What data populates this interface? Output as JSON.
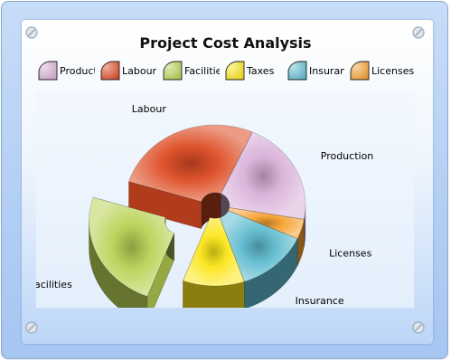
{
  "colors": {
    "Production": "#d9b0d8",
    "Labour": "#dd4b22",
    "Facilities": "#b9d255",
    "Taxes": "#fbe619",
    "Insurance": "#5fbcd0",
    "Licenses": "#f7a030"
  },
  "icons": [
    "screw-icon-top-left",
    "screw-icon-top-right",
    "screw-icon-bottom-left",
    "screw-icon-bottom-right"
  ],
  "chart_data": {
    "type": "pie",
    "style": "3d-exploded",
    "title": "Project Cost Analysis",
    "legend_position": "top",
    "labels": [
      "Production",
      "Labour",
      "Facilities",
      "Taxes",
      "Insurance",
      "Licenses"
    ],
    "legend_labels": [
      "Production",
      "Labour",
      "Facilities",
      "Taxes",
      "Insurance",
      "Licenses"
    ],
    "values": [
      21,
      27,
      24,
      11,
      13,
      4
    ],
    "exploded": [
      "Facilities"
    ]
  }
}
